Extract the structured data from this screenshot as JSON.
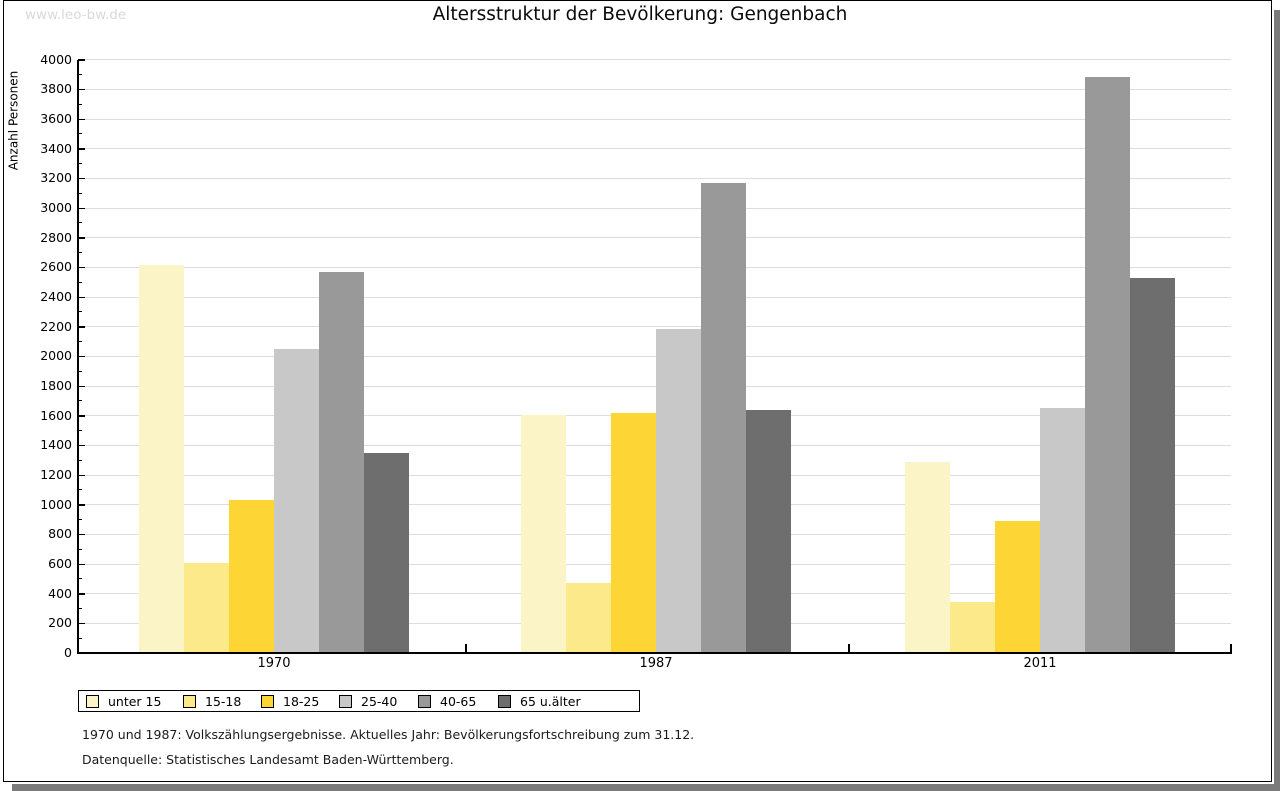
{
  "watermark": "www.leo-bw.de",
  "title": "Altersstruktur der Bevölkerung: Gengenbach",
  "y_axis": {
    "label": "Anzahl Personen"
  },
  "footnotes": {
    "line1": "1970 und 1987: Volkszählungsergebnisse. Aktuelles Jahr: Bevölkerungsfortschreibung zum 31.12.",
    "line2": "Datenquelle: Statistisches Landesamt Baden-Württemberg."
  },
  "chart_data": {
    "type": "bar",
    "title": "Altersstruktur der Bevölkerung: Gengenbach",
    "xlabel": "",
    "ylabel": "Anzahl Personen",
    "ylim": [
      0,
      4000
    ],
    "ytick_step": 200,
    "minor_tick_step": 100,
    "grid": true,
    "legend_position": "bottom-left",
    "categories": [
      "1970",
      "1987",
      "2011"
    ],
    "series": [
      {
        "name": "unter 15",
        "color": "#FBF4C6",
        "values": [
          2615,
          1605,
          1290
        ]
      },
      {
        "name": "15-18",
        "color": "#FCE98A",
        "values": [
          610,
          470,
          345
        ]
      },
      {
        "name": "18-25",
        "color": "#FDD535",
        "values": [
          1030,
          1615,
          890
        ]
      },
      {
        "name": "25-40",
        "color": "#C8C8C8",
        "values": [
          2050,
          2185,
          1650
        ]
      },
      {
        "name": "40-65",
        "color": "#999999",
        "values": [
          2570,
          3170,
          3880
        ]
      },
      {
        "name": "65 u.älter",
        "color": "#6E6E6E",
        "values": [
          1350,
          1635,
          2525
        ]
      }
    ]
  }
}
